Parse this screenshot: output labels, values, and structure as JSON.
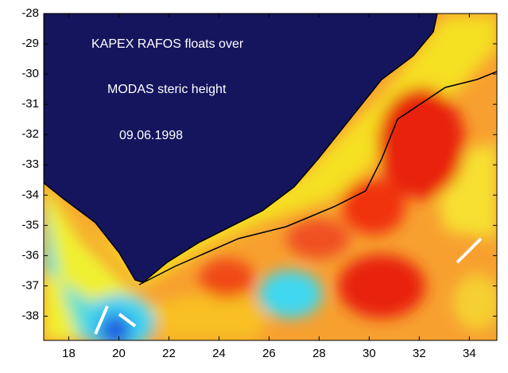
{
  "chart_data": {
    "type": "map",
    "annotations": [
      "KAPEX RAFOS floats over",
      "MODAS steric height",
      "09.06.1998"
    ],
    "xlim": [
      17,
      35.1
    ],
    "ylim": [
      -38.8,
      -28
    ],
    "xticks": [
      18,
      20,
      22,
      24,
      26,
      28,
      30,
      32,
      34
    ],
    "yticks": [
      -28,
      -29,
      -30,
      -31,
      -32,
      -33,
      -34,
      -35,
      -36,
      -37,
      -38
    ]
  }
}
